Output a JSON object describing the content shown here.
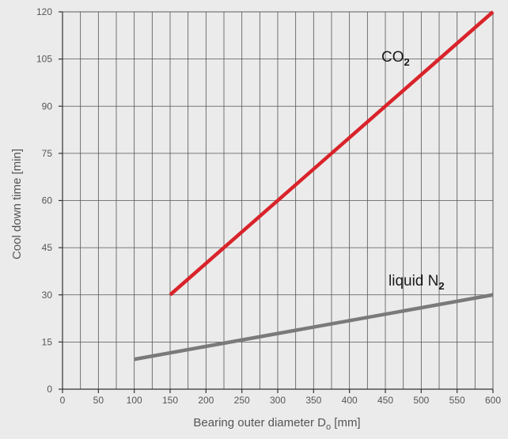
{
  "chart_data": {
    "type": "line",
    "title": "",
    "xlabel": "Bearing outer diameter D",
    "xlabel_subscript": "o",
    "xlabel_unit": " [mm]",
    "ylabel": "Cool down time [min]",
    "xlim": [
      0,
      600
    ],
    "ylim": [
      0,
      120
    ],
    "x_ticks": [
      0,
      50,
      100,
      150,
      200,
      250,
      300,
      350,
      400,
      450,
      500,
      550,
      600
    ],
    "y_ticks": [
      0,
      15,
      30,
      45,
      60,
      75,
      90,
      105,
      120
    ],
    "grid": true,
    "series": [
      {
        "name": "CO",
        "name_subscript": "2",
        "color": "#d9232a",
        "x": [
          150,
          600
        ],
        "y": [
          30,
          120
        ]
      },
      {
        "name": "liquid N",
        "name_subscript": "2",
        "color": "#7a7a7a",
        "x": [
          100,
          600
        ],
        "y": [
          9.5,
          30
        ]
      }
    ],
    "colors": {
      "background": "#ebebeb",
      "grid": "#555555",
      "axis": "#333333",
      "text": "#555555"
    }
  }
}
